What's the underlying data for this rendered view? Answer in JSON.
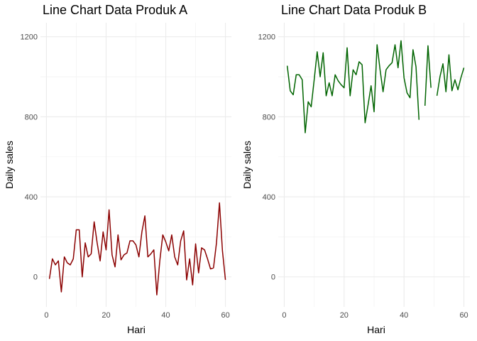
{
  "chart_data": [
    {
      "type": "line",
      "title": "Line Chart Data Produk A",
      "xlabel": "Hari",
      "ylabel": "Daily sales",
      "xlim": [
        -2,
        62
      ],
      "ylim": [
        -150,
        1270
      ],
      "xticks": [
        0,
        20,
        40,
        60
      ],
      "xtick_labels": [
        "0",
        "20",
        "40",
        "60"
      ],
      "yticks": [
        0,
        400,
        800,
        1200
      ],
      "ytick_labels": [
        "0",
        "400",
        "800",
        "1200"
      ],
      "grid": true,
      "color": "#8B0000",
      "series": [
        {
          "name": "Produk A",
          "x": [
            1,
            2,
            3,
            4,
            5,
            6,
            7,
            8,
            9,
            10,
            11,
            12,
            13,
            14,
            15,
            16,
            17,
            18,
            19,
            20,
            21,
            22,
            23,
            24,
            25,
            26,
            27,
            28,
            29,
            30,
            31,
            32,
            33,
            34,
            35,
            36,
            37,
            38,
            39,
            40,
            41,
            42,
            43,
            44,
            45,
            46,
            47,
            48,
            49,
            50,
            51,
            52,
            53,
            54,
            55,
            56,
            57,
            58,
            59,
            60
          ],
          "values": [
            -10,
            90,
            60,
            80,
            -75,
            100,
            70,
            60,
            90,
            235,
            235,
            0,
            170,
            100,
            115,
            275,
            170,
            80,
            225,
            135,
            335,
            110,
            50,
            210,
            85,
            110,
            120,
            180,
            180,
            160,
            100,
            225,
            305,
            100,
            115,
            135,
            -90,
            80,
            210,
            175,
            130,
            210,
            100,
            60,
            180,
            230,
            -15,
            90,
            -40,
            165,
            20,
            145,
            135,
            90,
            40,
            45,
            170,
            370,
            130,
            -15
          ]
        }
      ]
    },
    {
      "type": "line",
      "title": "Line Chart Data Produk B",
      "xlabel": "Hari",
      "ylabel": "Daily sales",
      "xlim": [
        -2,
        62
      ],
      "ylim": [
        -150,
        1270
      ],
      "xticks": [
        0,
        20,
        40,
        60
      ],
      "xtick_labels": [
        "0",
        "20",
        "40",
        "60"
      ],
      "yticks": [
        0,
        400,
        800,
        1200
      ],
      "ytick_labels": [
        "0",
        "400",
        "800",
        "1200"
      ],
      "grid": true,
      "color": "#006400",
      "series": [
        {
          "name": "Produk B",
          "x": [
            1,
            2,
            3,
            4,
            5,
            6,
            7,
            8,
            9,
            10,
            11,
            12,
            13,
            14,
            15,
            16,
            17,
            18,
            19,
            20,
            21,
            22,
            23,
            24,
            25,
            26,
            27,
            28,
            29,
            30,
            31,
            32,
            33,
            34,
            35,
            36,
            37,
            38,
            39,
            40,
            41,
            42,
            43,
            44,
            45,
            46,
            47,
            48,
            49,
            50,
            51,
            52,
            53,
            54,
            55,
            56,
            57,
            58,
            59,
            60
          ],
          "values": [
            1055,
            930,
            910,
            1010,
            1010,
            985,
            720,
            875,
            850,
            985,
            1125,
            1000,
            1120,
            905,
            970,
            905,
            1010,
            980,
            960,
            945,
            1145,
            905,
            1035,
            1010,
            1075,
            1060,
            770,
            860,
            955,
            825,
            1160,
            1035,
            925,
            1035,
            1055,
            1070,
            1160,
            1045,
            1180,
            995,
            920,
            895,
            1135,
            1050,
            785,
            null,
            855,
            1155,
            945,
            null,
            905,
            1000,
            1065,
            925,
            1110,
            930,
            985,
            935,
            995,
            1045
          ]
        }
      ]
    }
  ]
}
